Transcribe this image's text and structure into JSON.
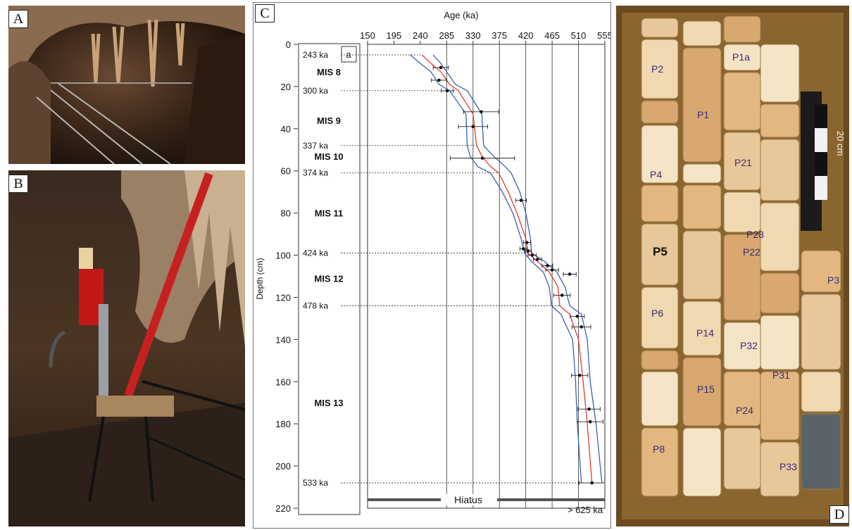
{
  "panels": {
    "a_label": "A",
    "b_label": "B",
    "c_label": "C",
    "d_label": "D"
  },
  "scale_bar_label": "20 cm",
  "core_labels": [
    "P2",
    "P1",
    "P1a",
    "P4",
    "P21",
    "P23",
    "P5",
    "P22",
    "P6",
    "P14",
    "P32",
    "P15",
    "P31",
    "P24",
    "P8",
    "P33",
    "P3"
  ],
  "chart_data": {
    "type": "line",
    "xlabel": "Age (ka)",
    "ylabel": "Depth (cm)",
    "xlim": [
      150,
      555
    ],
    "ylim": [
      0,
      220
    ],
    "x_ticks": [
      150,
      195,
      240,
      285,
      330,
      375,
      420,
      465,
      510,
      555
    ],
    "y_ticks": [
      0,
      20,
      40,
      60,
      80,
      100,
      120,
      140,
      160,
      180,
      200,
      220
    ],
    "inset_label": "a",
    "hiatus_label": "Hiatus",
    "hiatus_depth": 216,
    "hiatus_age_label": "> 625 ka",
    "vertical_gridlines": [
      285,
      330,
      375,
      420,
      465,
      510,
      555
    ],
    "boundaries": [
      {
        "label": "243 ka",
        "depth": 5
      },
      {
        "label": "300 ka",
        "depth": 22
      },
      {
        "label": "337 ka",
        "depth": 48
      },
      {
        "label": "374 ka",
        "depth": 61
      },
      {
        "label": "424 ka",
        "depth": 99
      },
      {
        "label": "478 ka",
        "depth": 124
      },
      {
        "label": "533 ka",
        "depth": 208
      }
    ],
    "stages": [
      {
        "label": "MIS 8",
        "depth": 13
      },
      {
        "label": "MIS 9",
        "depth": 36
      },
      {
        "label": "MIS 10",
        "depth": 53
      },
      {
        "label": "MIS 11",
        "depth": 80
      },
      {
        "label": "MIS 12",
        "depth": 111
      },
      {
        "label": "MIS 13",
        "depth": 170
      }
    ],
    "dated_points": [
      {
        "age": 275,
        "depth": 11,
        "err": 13
      },
      {
        "age": 272,
        "depth": 17,
        "err": 13
      },
      {
        "age": 286,
        "depth": 22,
        "err": 10
      },
      {
        "age": 344,
        "depth": 32,
        "err": 30
      },
      {
        "age": 330,
        "depth": 39,
        "err": 25
      },
      {
        "age": 346,
        "depth": 54,
        "err": 55
      },
      {
        "age": 412,
        "depth": 74,
        "err": 9
      },
      {
        "age": 422,
        "depth": 94,
        "err": 6
      },
      {
        "age": 416,
        "depth": 97,
        "err": 6
      },
      {
        "age": 424,
        "depth": 98,
        "err": 5
      },
      {
        "age": 431,
        "depth": 100,
        "err": 7
      },
      {
        "age": 440,
        "depth": 102,
        "err": 7
      },
      {
        "age": 457,
        "depth": 105,
        "err": 9
      },
      {
        "age": 465,
        "depth": 107,
        "err": 11
      },
      {
        "age": 495,
        "depth": 109,
        "err": 11
      },
      {
        "age": 482,
        "depth": 119,
        "err": 14
      },
      {
        "age": 508,
        "depth": 129,
        "err": 12
      },
      {
        "age": 515,
        "depth": 134,
        "err": 16
      },
      {
        "age": 512,
        "depth": 157,
        "err": 14
      },
      {
        "age": 528,
        "depth": 173,
        "err": 19
      },
      {
        "age": 530,
        "depth": 179,
        "err": 22
      },
      {
        "age": 533,
        "depth": 208,
        "err": 22
      }
    ],
    "series": [
      {
        "color": "#e33b2f",
        "x": [
          243,
          258,
          275,
          290,
          305,
          330,
          336,
          345,
          360,
          374,
          390,
          405,
          420,
          424,
          440,
          460,
          475,
          478,
          495,
          510,
          518,
          525,
          533
        ],
        "y": [
          5,
          9,
          13,
          19,
          22,
          33,
          48,
          53,
          58,
          61,
          70,
          80,
          92,
          99,
          103,
          108,
          115,
          124,
          128,
          140,
          160,
          180,
          208
        ]
      },
      {
        "color": "#3a5fb0",
        "x": [
          223,
          240,
          258,
          272,
          290,
          318,
          320,
          325,
          338,
          360,
          380,
          398,
          412,
          418,
          430,
          450,
          460,
          464,
          480,
          500,
          505,
          508,
          515
        ],
        "y": [
          5,
          9,
          13,
          19,
          22,
          33,
          48,
          53,
          58,
          61,
          70,
          80,
          92,
          99,
          103,
          108,
          115,
          124,
          128,
          140,
          160,
          180,
          208
        ]
      },
      {
        "color": "#3a5fb0",
        "x": [
          262,
          275,
          285,
          300,
          320,
          345,
          348,
          365,
          385,
          395,
          410,
          420,
          428,
          430,
          452,
          473,
          487,
          495,
          515,
          525,
          530,
          540,
          550
        ],
        "y": [
          5,
          9,
          13,
          19,
          22,
          33,
          48,
          53,
          58,
          61,
          70,
          80,
          92,
          99,
          103,
          108,
          115,
          124,
          128,
          140,
          160,
          180,
          208
        ]
      }
    ]
  }
}
